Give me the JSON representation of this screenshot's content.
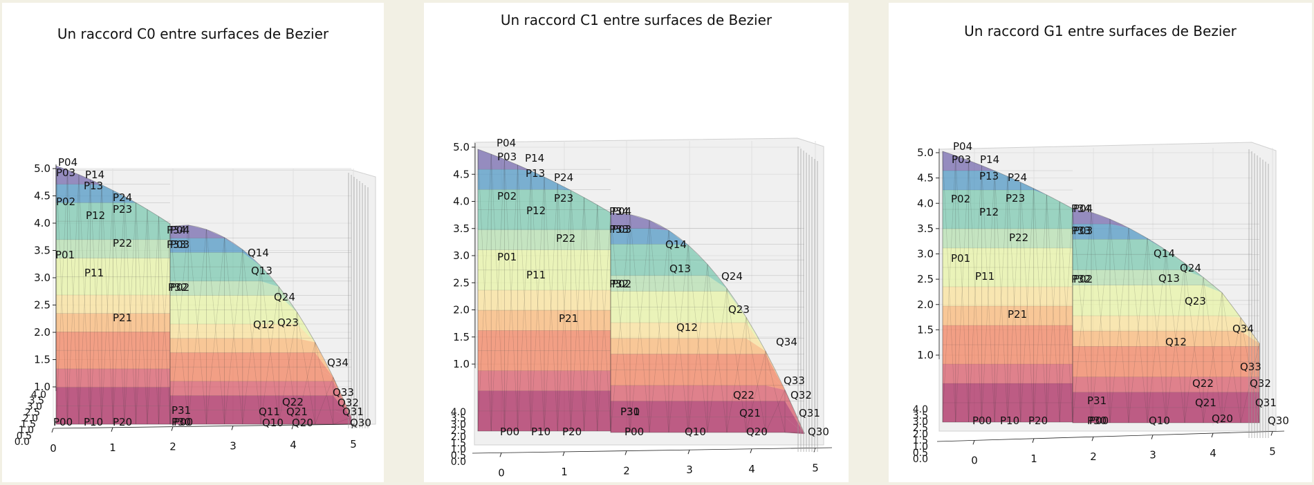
{
  "panels": [
    {
      "title": "Un raccord C0 entre surfaces de Bezier"
    },
    {
      "title": "Un raccord C1 entre surfaces de Bezier"
    },
    {
      "title": "Un raccord G1 entre surfaces de Bezier"
    }
  ],
  "axes": {
    "z_ticks_main": [
      "1.0",
      "1.5",
      "2.0",
      "2.5",
      "3.0",
      "3.5",
      "4.0",
      "4.5",
      "5.0"
    ],
    "x_ticks": [
      "0",
      "1",
      "2",
      "3",
      "4",
      "5"
    ],
    "y_ticks_c0": [
      "0.0",
      "0.5",
      "1.0",
      "1.5",
      "2.0",
      "2.5",
      "3.0",
      "3.5",
      "4.0"
    ],
    "y_ticks_c1": [
      "0.0",
      "0.5",
      "1.0",
      "1.5",
      "2.0",
      "2.5",
      "3.0",
      "3.5",
      "4.0"
    ],
    "y_ticks_g1": [
      "0.0",
      "0.5",
      "1.0",
      "1.5",
      "2.0",
      "2.5",
      "3.0",
      "3.5",
      "4.0"
    ]
  },
  "colormap": [
    "#9e0142",
    "#d53e4f",
    "#f46d43",
    "#fdae61",
    "#fee08b",
    "#e6f598",
    "#abdda4",
    "#66c2a5",
    "#3288bd",
    "#5e4fa2"
  ],
  "point_labels": {
    "c0": [
      "P04",
      "P03",
      "P14",
      "P13",
      "P24",
      "P02",
      "P23",
      "P12",
      "P34",
      "P04",
      "P33",
      "P03",
      "P22",
      "P01",
      "P11",
      "P32",
      "P02",
      "P21",
      "P00",
      "P10",
      "P20",
      "P31",
      "P30",
      "P00",
      "Q14",
      "Q13",
      "Q24",
      "Q12",
      "Q23",
      "Q34",
      "Q33",
      "Q22",
      "Q32",
      "Q11",
      "Q21",
      "Q31",
      "Q10",
      "Q20",
      "Q30"
    ],
    "c1": [
      "P04",
      "P03",
      "P14",
      "P13",
      "P24",
      "P02",
      "P23",
      "P12",
      "P34",
      "P04",
      "P33",
      "P03",
      "P22",
      "P01",
      "P11",
      "P32",
      "P02",
      "P21",
      "P00",
      "P10",
      "P20",
      "P31",
      "P30",
      "P00",
      "Q14",
      "Q13",
      "Q24",
      "Q12",
      "Q23",
      "Q34",
      "Q33",
      "Q22",
      "Q32",
      "Q21",
      "Q31",
      "Q10",
      "Q20",
      "Q30"
    ],
    "g1": [
      "P04",
      "P03",
      "P14",
      "P13",
      "P24",
      "P02",
      "P23",
      "P12",
      "P34",
      "P04",
      "P33",
      "P03",
      "P22",
      "P01",
      "P11",
      "P32",
      "P02",
      "P21",
      "P00",
      "P10",
      "P20",
      "P31",
      "P30",
      "P00",
      "Q14",
      "Q24",
      "Q13",
      "Q23",
      "Q34",
      "Q12",
      "Q33",
      "Q22",
      "Q32",
      "Q21",
      "Q31",
      "Q10",
      "Q20",
      "Q30"
    ]
  }
}
